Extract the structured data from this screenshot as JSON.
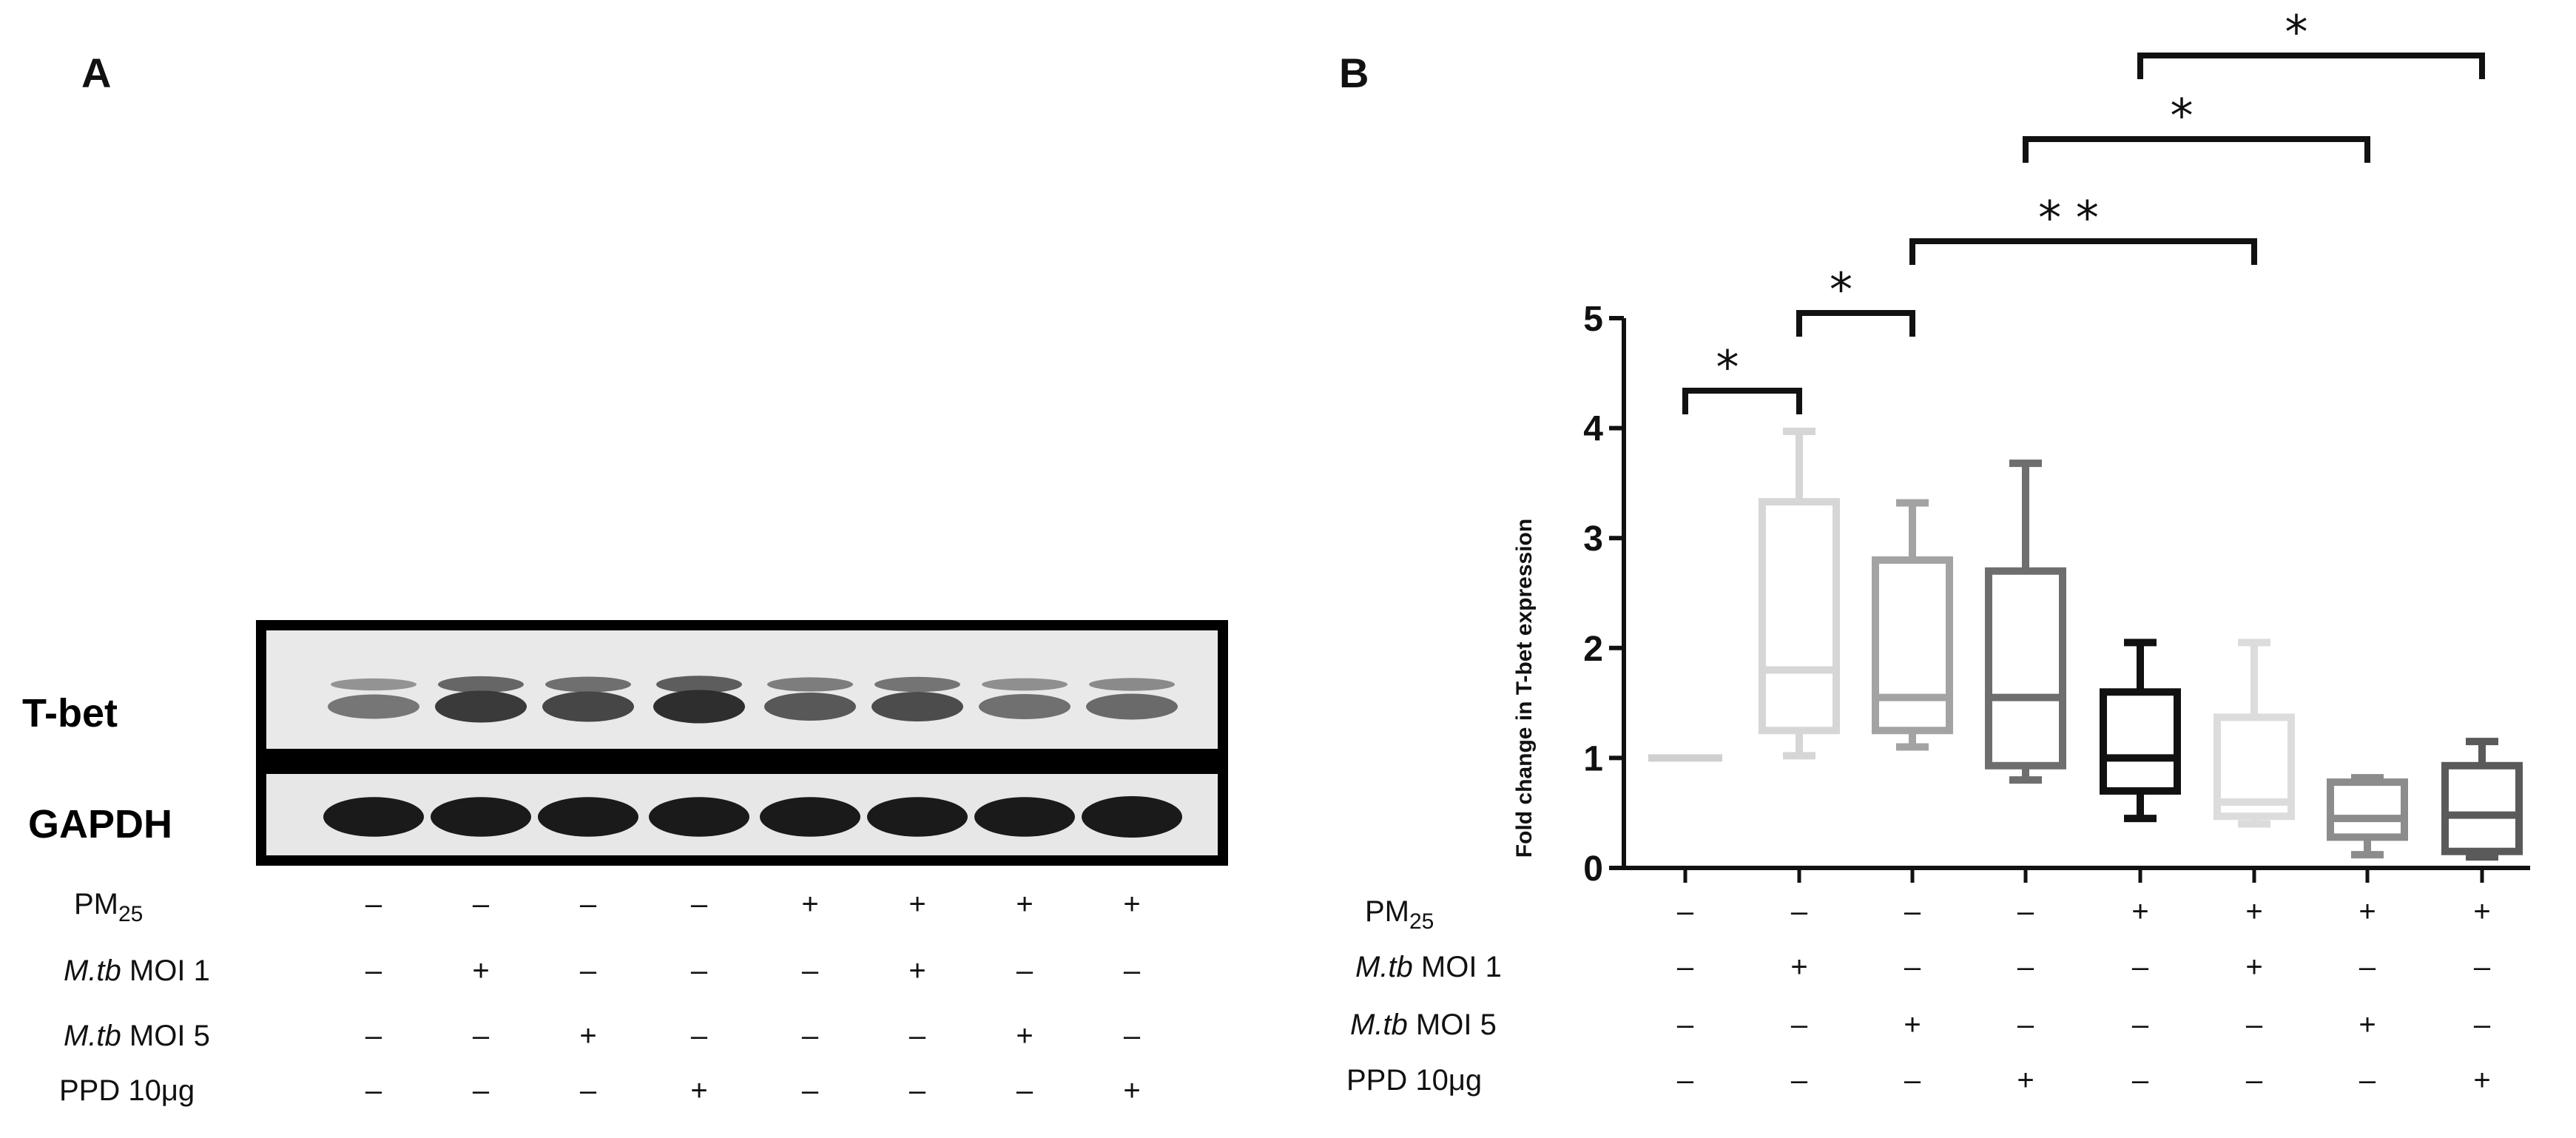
{
  "panel_a": {
    "label": "A",
    "blot_labels": [
      "T-bet",
      "GAPDH"
    ],
    "tbet_intensity": [
      0.35,
      0.85,
      0.75,
      0.95,
      0.6,
      0.7,
      0.4,
      0.45
    ],
    "gapdh_intensity": [
      0.85,
      0.85,
      0.85,
      0.85,
      0.85,
      0.85,
      0.85,
      1.0
    ]
  },
  "conditions": {
    "row_labels": [
      {
        "main": "PM",
        "sub": "25",
        "italic": ""
      },
      {
        "italic": "M.tb",
        "main": " MOI 1",
        "sub": ""
      },
      {
        "italic": "M.tb",
        "main": " MOI 5",
        "sub": ""
      },
      {
        "main": "PPD 10μg",
        "sub": "",
        "italic": ""
      }
    ],
    "rows": [
      [
        "–",
        "–",
        "–",
        "–",
        "+",
        "+",
        "+",
        "+"
      ],
      [
        "–",
        "+",
        "–",
        "–",
        "–",
        "+",
        "–",
        "–"
      ],
      [
        "–",
        "–",
        "+",
        "–",
        "–",
        "–",
        "+",
        "–"
      ],
      [
        "–",
        "–",
        "–",
        "+",
        "–",
        "–",
        "–",
        "+"
      ]
    ]
  },
  "chart_data": {
    "type": "boxplot",
    "panel_label": "B",
    "ylabel": "Fold change in T-bet expression",
    "ylim": [
      0,
      5
    ],
    "yticks": [
      "0",
      "1",
      "2",
      "3",
      "4",
      "5"
    ],
    "groups": [
      {
        "min": 1.0,
        "q1": 1.0,
        "median": 1.0,
        "q3": 1.0,
        "max": 1.0,
        "color": "#d0d0d0"
      },
      {
        "min": 1.02,
        "q1": 1.25,
        "median": 1.8,
        "q3": 3.33,
        "max": 3.97,
        "color": "#d6d6d6"
      },
      {
        "min": 1.1,
        "q1": 1.25,
        "median": 1.55,
        "q3": 2.8,
        "max": 3.32,
        "color": "#a3a3a3"
      },
      {
        "min": 0.8,
        "q1": 0.93,
        "median": 1.55,
        "q3": 2.7,
        "max": 3.68,
        "color": "#6e6e6e"
      },
      {
        "min": 0.45,
        "q1": 0.7,
        "median": 1.0,
        "q3": 1.6,
        "max": 2.05,
        "color": "#111111"
      },
      {
        "min": 0.4,
        "q1": 0.47,
        "median": 0.6,
        "q3": 1.37,
        "max": 2.05,
        "color": "#dcdcdc"
      },
      {
        "min": 0.12,
        "q1": 0.28,
        "median": 0.45,
        "q3": 0.78,
        "max": 0.82,
        "color": "#8c8c8c"
      },
      {
        "min": 0.1,
        "q1": 0.15,
        "median": 0.48,
        "q3": 0.93,
        "max": 1.15,
        "color": "#5a5a5a"
      }
    ],
    "significance": [
      {
        "from": 0,
        "to": 1,
        "label": "*"
      },
      {
        "from": 1,
        "to": 2,
        "label": "*"
      },
      {
        "from": 2,
        "to": 5,
        "label": "* *"
      },
      {
        "from": 3,
        "to": 6,
        "label": "*"
      },
      {
        "from": 4,
        "to": 7,
        "label": "*"
      }
    ]
  }
}
